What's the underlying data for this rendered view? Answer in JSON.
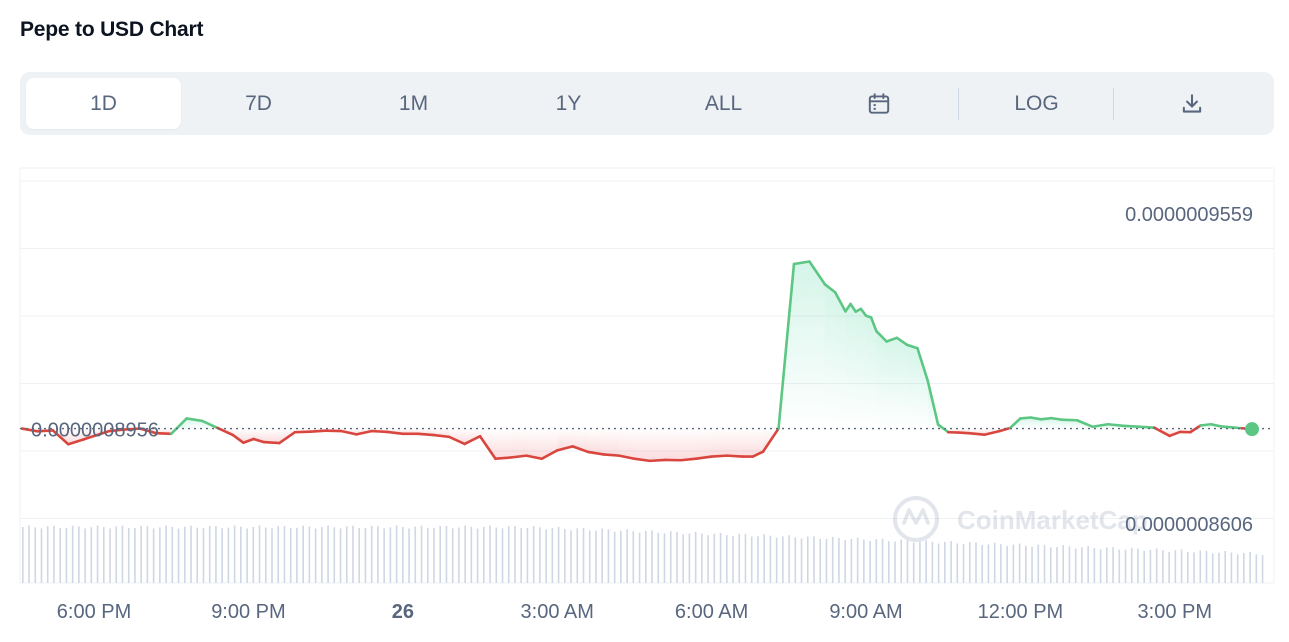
{
  "title": "Pepe to USD Chart",
  "tabs": [
    {
      "label": "1D",
      "active": true
    },
    {
      "label": "7D",
      "active": false
    },
    {
      "label": "1M",
      "active": false
    },
    {
      "label": "1Y",
      "active": false
    },
    {
      "label": "ALL",
      "active": false
    }
  ],
  "log_label": "LOG",
  "icons": {
    "calendar": "calendar-icon",
    "download": "download-icon"
  },
  "colors": {
    "up": "#16c784",
    "down": "#ea3943",
    "line_up": "#5cc683",
    "line_down": "#d9463e",
    "text": "#58667e"
  },
  "watermark": "CoinMarketCap",
  "chart_data": {
    "type": "line",
    "title": "Pepe to USD Chart",
    "reference_label": "0.0000008956",
    "reference_value": 8.956e-07,
    "y_labels": [
      "0.0000009559",
      "0.0000008606"
    ],
    "ylim": [
      8.454e-07,
      9.803e-07
    ],
    "x_tick_labels": [
      "6:00 PM",
      "9:00 PM",
      "26",
      "3:00 AM",
      "6:00 AM",
      "9:00 AM",
      "12:00 PM",
      "3:00 PM"
    ],
    "x_tick_hours": [
      18,
      21,
      24,
      27,
      30,
      33,
      36,
      39
    ],
    "xlim_hours": [
      16.6,
      40.5
    ],
    "grid": true,
    "series": [
      {
        "x_hours": [
          16.6,
          16.9,
          17.2,
          17.5,
          17.8,
          18.0,
          18.3,
          18.6,
          18.9,
          19.2,
          19.5,
          19.8,
          20.1,
          20.4,
          20.7,
          20.9,
          21.1,
          21.3,
          21.6,
          21.9,
          22.2,
          22.5,
          22.8,
          23.1,
          23.4,
          23.7,
          24.0,
          24.3,
          24.6,
          24.9,
          25.2,
          25.5,
          25.8,
          26.1,
          26.4,
          26.7,
          27.0,
          27.3,
          27.6,
          27.9,
          28.2,
          28.5,
          28.8,
          29.1,
          29.4,
          29.7,
          30.0,
          30.3,
          30.6,
          30.8,
          31.0,
          31.3,
          31.6,
          31.9,
          32.2,
          32.4,
          32.6,
          32.7,
          32.8,
          32.9,
          33.0,
          33.1,
          33.2,
          33.4,
          33.6,
          33.8,
          34.0,
          34.2,
          34.4,
          34.6,
          34.8,
          35.0,
          35.3,
          35.6,
          35.8,
          36.0,
          36.2,
          36.4,
          36.6,
          36.8,
          37.1,
          37.4,
          37.7,
          38.0,
          38.3,
          38.6,
          38.9,
          39.1,
          39.3,
          39.5,
          39.7,
          39.9,
          40.1,
          40.3,
          40.5
        ],
        "y": [
          8.956e-07,
          8.947e-07,
          8.95e-07,
          8.905e-07,
          8.921e-07,
          8.932e-07,
          8.948e-07,
          8.953e-07,
          8.956e-07,
          8.941e-07,
          8.939e-07,
          8.989e-07,
          8.981e-07,
          8.958e-07,
          8.935e-07,
          8.91e-07,
          8.922e-07,
          8.912e-07,
          8.909e-07,
          8.944e-07,
          8.946e-07,
          8.949e-07,
          8.948e-07,
          8.937e-07,
          8.948e-07,
          8.945e-07,
          8.939e-07,
          8.939e-07,
          8.935e-07,
          8.929e-07,
          8.906e-07,
          8.931e-07,
          8.858e-07,
          8.862e-07,
          8.868e-07,
          8.858e-07,
          8.885e-07,
          8.898e-07,
          8.88e-07,
          8.872e-07,
          8.868e-07,
          8.858e-07,
          8.851e-07,
          8.854e-07,
          8.853e-07,
          8.858e-07,
          8.865e-07,
          8.868e-07,
          8.865e-07,
          8.865e-07,
          8.881e-07,
          8.956e-07,
          9.491e-07,
          9.499e-07,
          9.425e-07,
          9.399e-07,
          9.337e-07,
          9.361e-07,
          9.336e-07,
          9.345e-07,
          9.323e-07,
          9.317e-07,
          9.273e-07,
          9.239e-07,
          9.251e-07,
          9.228e-07,
          9.217e-07,
          9.111e-07,
          8.969e-07,
          8.944e-07,
          8.943e-07,
          8.941e-07,
          8.936e-07,
          8.948e-07,
          8.958e-07,
          8.989e-07,
          8.992e-07,
          8.986e-07,
          8.99e-07,
          8.985e-07,
          8.983e-07,
          8.962e-07,
          8.97e-07,
          8.965e-07,
          8.962e-07,
          8.959e-07,
          8.932e-07,
          8.945e-07,
          8.944e-07,
          8.966e-07,
          8.97e-07,
          8.963e-07,
          8.96e-07,
          8.957e-07,
          8.954e-07
        ]
      }
    ]
  }
}
